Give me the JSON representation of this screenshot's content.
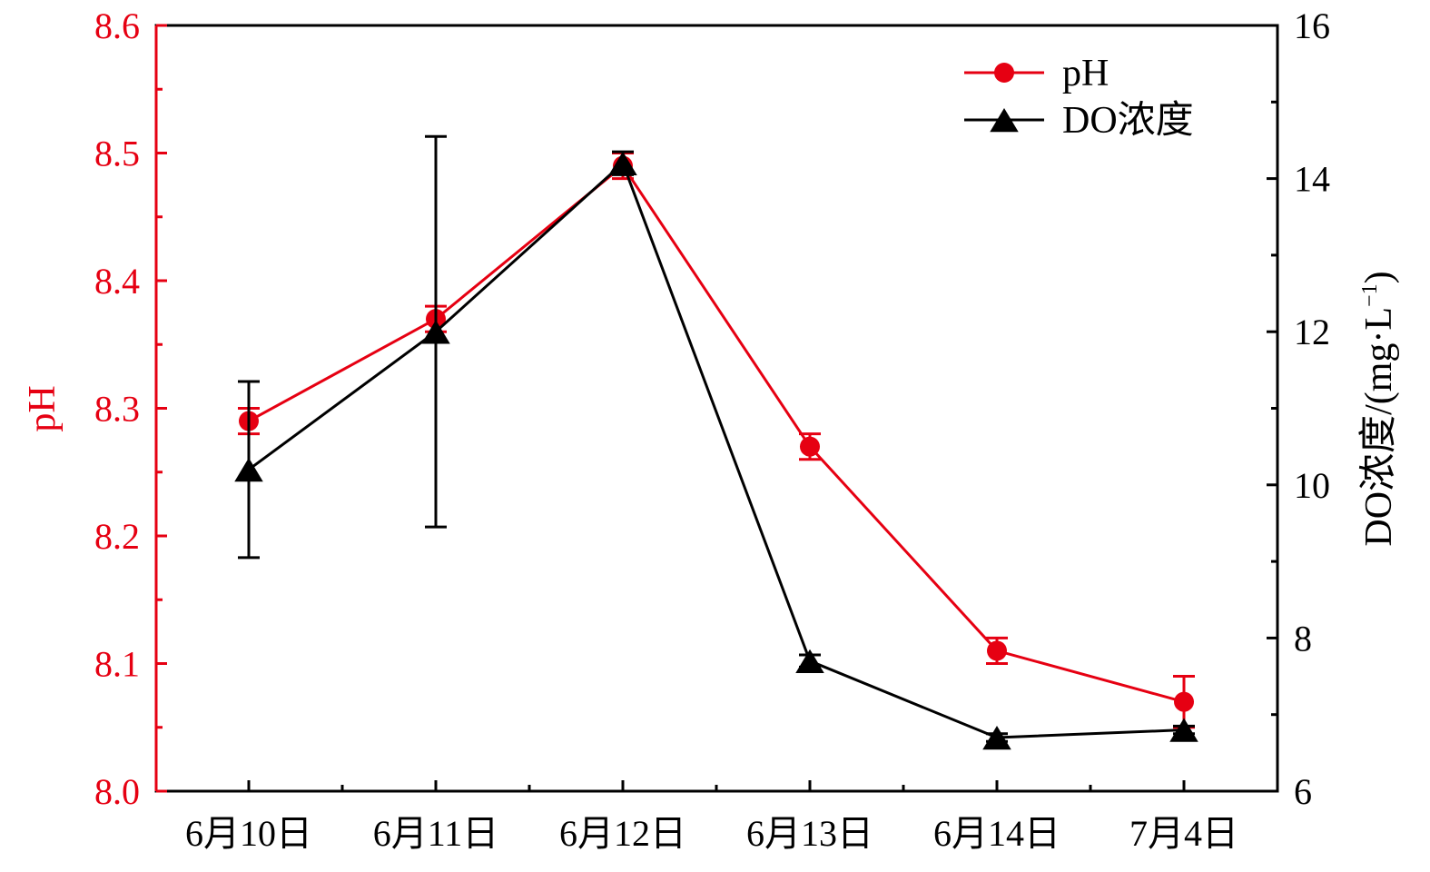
{
  "chart_data": {
    "type": "line",
    "categories": [
      "6月10日",
      "6月11日",
      "6月12日",
      "6月13日",
      "6月14日",
      "7月4日"
    ],
    "y_left": {
      "label": "pH",
      "lim": [
        8.0,
        8.6
      ],
      "ticks": [
        "8.0",
        "8.1",
        "8.2",
        "8.3",
        "8.4",
        "8.5",
        "8.6"
      ],
      "color": "#e60012"
    },
    "y_right": {
      "label_main": "DO浓度/(mg·L",
      "label_sup": "−1",
      "label_close": ")",
      "lim": [
        6,
        16
      ],
      "ticks": [
        "6",
        "8",
        "10",
        "12",
        "14",
        "16"
      ],
      "color": "#000000"
    },
    "series": [
      {
        "name": "pH",
        "axis": "left",
        "color": "#e60012",
        "marker": "circle",
        "values": [
          8.29,
          8.37,
          8.49,
          8.27,
          8.11,
          8.07
        ],
        "errors": [
          0.01,
          0.01,
          0.01,
          0.01,
          0.01,
          0.02
        ]
      },
      {
        "name": "DO浓度",
        "axis": "right",
        "color": "#000000",
        "marker": "triangle",
        "values": [
          10.2,
          12.0,
          14.2,
          7.7,
          6.7,
          6.8
        ],
        "errors": [
          1.15,
          2.55,
          0.15,
          0.08,
          0.05,
          0.05
        ]
      }
    ],
    "legend_position": "top-right",
    "grid": false
  }
}
